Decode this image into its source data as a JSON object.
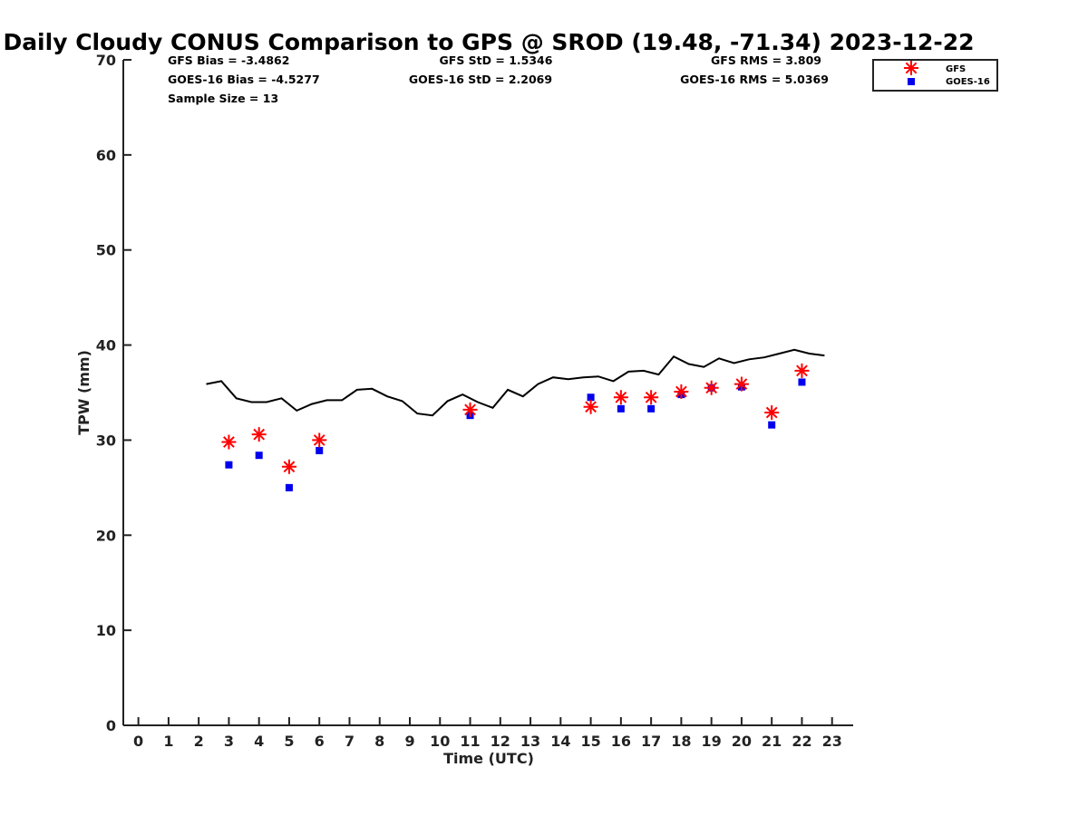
{
  "chart_data": {
    "type": "scatter",
    "title": "Daily Cloudy CONUS Comparison to GPS @ SROD (19.48, -71.34) 2023-12-22",
    "xlabel": "Time (UTC)",
    "ylabel": "TPW (mm)",
    "xlim": [
      -0.5,
      23.7
    ],
    "ylim": [
      0,
      70
    ],
    "x_ticks": [
      "0",
      "1",
      "2",
      "3",
      "4",
      "5",
      "6",
      "7",
      "8",
      "9",
      "10",
      "11",
      "12",
      "13",
      "14",
      "15",
      "16",
      "17",
      "18",
      "19",
      "20",
      "21",
      "22",
      "23"
    ],
    "y_ticks": [
      "0",
      "10",
      "20",
      "30",
      "40",
      "50",
      "60",
      "70"
    ],
    "stats": {
      "gfs_bias": "GFS Bias = -3.4862",
      "goes_bias": "GOES-16 Bias = -4.5277",
      "sample_size": "Sample Size = 13",
      "gfs_std": "GFS StD = 1.5346",
      "goes_std": "GOES-16 StD = 2.2069",
      "gfs_rms": "GFS RMS = 3.809",
      "goes_rms": "GOES-16 RMS = 5.0369"
    },
    "legend": {
      "position": "top-right",
      "gfs_label": "GFS",
      "goes_label": "GOES-16"
    },
    "series": [
      {
        "name": "GFS",
        "marker": "asterisk",
        "color": "#ff0000",
        "x": [
          3,
          4,
          5,
          6,
          11,
          15,
          16,
          17,
          18,
          19,
          20,
          21,
          22
        ],
        "y": [
          29.8,
          30.6,
          27.2,
          30.0,
          33.2,
          33.5,
          34.5,
          34.5,
          35.1,
          35.5,
          35.9,
          32.9,
          37.3
        ]
      },
      {
        "name": "GOES-16",
        "marker": "square",
        "color": "#0000ee",
        "x": [
          3,
          4,
          5,
          6,
          11,
          15,
          16,
          17,
          18,
          19,
          20,
          21,
          22
        ],
        "y": [
          27.4,
          28.4,
          25.0,
          28.9,
          32.6,
          34.5,
          33.3,
          33.3,
          34.8,
          35.5,
          35.6,
          31.6,
          36.1
        ]
      },
      {
        "marker": "line",
        "color": "#000000",
        "x": [
          2.25,
          2.75,
          3.25,
          3.75,
          4.25,
          4.75,
          5.25,
          5.75,
          6.25,
          6.75,
          7.25,
          7.75,
          8.25,
          8.75,
          9.25,
          9.75,
          10.25,
          10.75,
          11.25,
          11.75,
          12.25,
          12.75,
          13.25,
          13.75,
          14.25,
          14.75,
          15.25,
          15.75,
          16.25,
          16.75,
          17.25,
          17.75,
          18.25,
          18.75,
          19.25,
          19.75,
          20.25,
          20.75,
          21.25,
          21.75,
          22.25,
          22.75
        ],
        "y": [
          35.9,
          36.2,
          34.4,
          34.0,
          34.0,
          34.4,
          33.1,
          33.8,
          34.2,
          34.2,
          35.3,
          35.4,
          34.6,
          34.1,
          32.8,
          32.6,
          34.1,
          34.8,
          34.0,
          33.4,
          35.3,
          34.6,
          35.9,
          36.6,
          36.4,
          36.6,
          36.7,
          36.2,
          37.2,
          37.3,
          36.9,
          38.8,
          38.0,
          37.7,
          38.6,
          38.1,
          38.5,
          38.7,
          39.1,
          39.5,
          39.1,
          38.9
        ]
      }
    ]
  }
}
